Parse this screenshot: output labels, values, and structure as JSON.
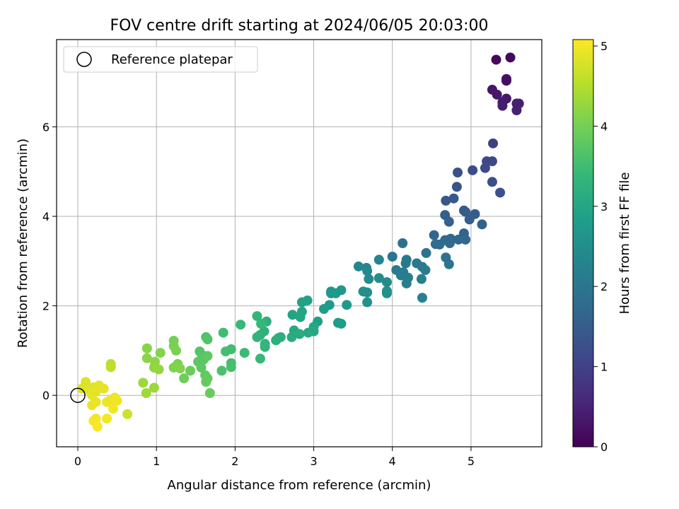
{
  "chart_data": {
    "type": "scatter",
    "title": "FOV centre drift starting at 2024/06/05 20:03:00",
    "xlabel": "Angular distance from reference (arcmin)",
    "ylabel": "Rotation from reference (arcmin)",
    "xlim": [
      -0.27,
      5.9
    ],
    "ylim": [
      -1.15,
      7.95
    ],
    "x_ticks": [
      0,
      1,
      2,
      3,
      4,
      5
    ],
    "y_ticks": [
      0,
      2,
      4,
      6
    ],
    "grid": true,
    "legend": {
      "position": "upper-left",
      "entries": [
        "Reference platepar"
      ]
    },
    "reference_point": {
      "x": 0,
      "y": 0,
      "marker": "hollow-circle"
    },
    "colorbar": {
      "label": "Hours from first FF file",
      "colormap": "viridis",
      "range": [
        0,
        5.08
      ],
      "ticks": [
        0,
        1,
        2,
        3,
        4,
        5
      ]
    },
    "colormap_stops": [
      "#440154",
      "#482878",
      "#3e4989",
      "#31688e",
      "#26828e",
      "#1f9e89",
      "#35b779",
      "#6ece58",
      "#b5de2b",
      "#fde725"
    ],
    "points": [
      {
        "x": 5.32,
        "y": 7.5,
        "c": 0.1
      },
      {
        "x": 5.5,
        "y": 7.55,
        "c": 0.12
      },
      {
        "x": 5.45,
        "y": 7.07,
        "c": 0.2
      },
      {
        "x": 5.45,
        "y": 7.03,
        "c": 0.22
      },
      {
        "x": 5.27,
        "y": 6.83,
        "c": 0.3
      },
      {
        "x": 5.33,
        "y": 6.72,
        "c": 0.32
      },
      {
        "x": 5.45,
        "y": 6.63,
        "c": 0.35
      },
      {
        "x": 5.4,
        "y": 6.55,
        "c": 0.38
      },
      {
        "x": 5.4,
        "y": 6.47,
        "c": 0.4
      },
      {
        "x": 5.58,
        "y": 6.52,
        "c": 0.42
      },
      {
        "x": 5.61,
        "y": 6.52,
        "c": 0.44
      },
      {
        "x": 5.58,
        "y": 6.37,
        "c": 0.46
      },
      {
        "x": 5.28,
        "y": 5.63,
        "c": 1.0
      },
      {
        "x": 5.2,
        "y": 5.23,
        "c": 1.1
      },
      {
        "x": 5.27,
        "y": 5.23,
        "c": 1.12
      },
      {
        "x": 5.18,
        "y": 5.08,
        "c": 1.15
      },
      {
        "x": 5.02,
        "y": 5.03,
        "c": 1.2
      },
      {
        "x": 4.83,
        "y": 4.98,
        "c": 1.25
      },
      {
        "x": 5.27,
        "y": 4.77,
        "c": 1.22
      },
      {
        "x": 5.37,
        "y": 4.53,
        "c": 1.3
      },
      {
        "x": 4.82,
        "y": 4.66,
        "c": 1.35
      },
      {
        "x": 4.68,
        "y": 4.35,
        "c": 1.4
      },
      {
        "x": 4.78,
        "y": 4.4,
        "c": 1.42
      },
      {
        "x": 4.91,
        "y": 4.13,
        "c": 1.45
      },
      {
        "x": 4.93,
        "y": 4.1,
        "c": 1.48
      },
      {
        "x": 5.05,
        "y": 4.05,
        "c": 1.5
      },
      {
        "x": 4.98,
        "y": 3.93,
        "c": 1.52
      },
      {
        "x": 4.67,
        "y": 4.03,
        "c": 1.55
      },
      {
        "x": 4.72,
        "y": 3.88,
        "c": 1.58
      },
      {
        "x": 5.14,
        "y": 3.82,
        "c": 1.55
      },
      {
        "x": 4.91,
        "y": 3.62,
        "c": 1.6
      },
      {
        "x": 4.53,
        "y": 3.58,
        "c": 1.65
      },
      {
        "x": 4.74,
        "y": 3.5,
        "c": 1.68
      },
      {
        "x": 4.84,
        "y": 3.48,
        "c": 1.7
      },
      {
        "x": 4.93,
        "y": 3.48,
        "c": 1.7
      },
      {
        "x": 4.67,
        "y": 3.47,
        "c": 1.72
      },
      {
        "x": 4.73,
        "y": 3.4,
        "c": 1.75
      },
      {
        "x": 4.55,
        "y": 3.38,
        "c": 1.78
      },
      {
        "x": 4.6,
        "y": 3.37,
        "c": 1.8
      },
      {
        "x": 4.13,
        "y": 3.4,
        "c": 1.85
      },
      {
        "x": 4.43,
        "y": 3.18,
        "c": 1.9
      },
      {
        "x": 4.68,
        "y": 3.08,
        "c": 1.92
      },
      {
        "x": 4.72,
        "y": 2.93,
        "c": 1.95
      },
      {
        "x": 4.0,
        "y": 3.1,
        "c": 2.0
      },
      {
        "x": 4.18,
        "y": 3.03,
        "c": 2.02
      },
      {
        "x": 4.17,
        "y": 2.95,
        "c": 2.05
      },
      {
        "x": 4.31,
        "y": 2.95,
        "c": 2.05
      },
      {
        "x": 4.38,
        "y": 2.87,
        "c": 2.08
      },
      {
        "x": 4.05,
        "y": 2.8,
        "c": 2.1
      },
      {
        "x": 4.14,
        "y": 2.75,
        "c": 2.12
      },
      {
        "x": 4.42,
        "y": 2.8,
        "c": 2.12
      },
      {
        "x": 4.11,
        "y": 2.68,
        "c": 2.15
      },
      {
        "x": 4.2,
        "y": 2.63,
        "c": 2.15
      },
      {
        "x": 4.37,
        "y": 2.6,
        "c": 2.18
      },
      {
        "x": 4.18,
        "y": 2.5,
        "c": 2.2
      },
      {
        "x": 4.38,
        "y": 2.18,
        "c": 2.22
      },
      {
        "x": 3.83,
        "y": 3.03,
        "c": 2.3
      },
      {
        "x": 3.57,
        "y": 2.88,
        "c": 2.35
      },
      {
        "x": 3.67,
        "y": 2.85,
        "c": 2.38
      },
      {
        "x": 3.68,
        "y": 2.78,
        "c": 2.4
      },
      {
        "x": 3.7,
        "y": 2.6,
        "c": 2.42
      },
      {
        "x": 3.83,
        "y": 2.62,
        "c": 2.45
      },
      {
        "x": 3.93,
        "y": 2.53,
        "c": 2.48
      },
      {
        "x": 3.63,
        "y": 2.32,
        "c": 2.5
      },
      {
        "x": 3.68,
        "y": 2.3,
        "c": 2.5
      },
      {
        "x": 3.93,
        "y": 2.33,
        "c": 2.52
      },
      {
        "x": 3.93,
        "y": 2.28,
        "c": 2.55
      },
      {
        "x": 3.68,
        "y": 2.08,
        "c": 2.58
      },
      {
        "x": 3.22,
        "y": 2.32,
        "c": 2.65
      },
      {
        "x": 3.22,
        "y": 2.28,
        "c": 2.68
      },
      {
        "x": 3.28,
        "y": 2.28,
        "c": 2.7
      },
      {
        "x": 3.35,
        "y": 2.35,
        "c": 2.7
      },
      {
        "x": 3.42,
        "y": 2.02,
        "c": 2.72
      },
      {
        "x": 3.2,
        "y": 2.02,
        "c": 2.75
      },
      {
        "x": 3.13,
        "y": 1.93,
        "c": 2.78
      },
      {
        "x": 3.31,
        "y": 1.62,
        "c": 2.8
      },
      {
        "x": 3.35,
        "y": 1.6,
        "c": 2.82
      },
      {
        "x": 3.05,
        "y": 1.65,
        "c": 2.85
      },
      {
        "x": 2.85,
        "y": 2.08,
        "c": 2.9
      },
      {
        "x": 2.92,
        "y": 2.12,
        "c": 2.92
      },
      {
        "x": 2.73,
        "y": 1.8,
        "c": 2.95
      },
      {
        "x": 2.85,
        "y": 1.87,
        "c": 2.95
      },
      {
        "x": 2.83,
        "y": 1.75,
        "c": 2.98
      },
      {
        "x": 3.0,
        "y": 1.53,
        "c": 3.0
      },
      {
        "x": 3.0,
        "y": 1.43,
        "c": 3.02
      },
      {
        "x": 2.93,
        "y": 1.4,
        "c": 3.05
      },
      {
        "x": 2.75,
        "y": 1.45,
        "c": 3.08
      },
      {
        "x": 2.82,
        "y": 1.37,
        "c": 3.1
      },
      {
        "x": 2.72,
        "y": 1.3,
        "c": 3.12
      },
      {
        "x": 2.55,
        "y": 1.28,
        "c": 3.15
      },
      {
        "x": 2.58,
        "y": 1.3,
        "c": 3.18
      },
      {
        "x": 2.52,
        "y": 1.23,
        "c": 3.2
      },
      {
        "x": 2.4,
        "y": 1.65,
        "c": 3.22
      },
      {
        "x": 2.37,
        "y": 1.43,
        "c": 3.25
      },
      {
        "x": 2.32,
        "y": 1.35,
        "c": 3.28
      },
      {
        "x": 2.28,
        "y": 1.3,
        "c": 3.3
      },
      {
        "x": 2.38,
        "y": 1.15,
        "c": 3.32
      },
      {
        "x": 2.38,
        "y": 1.08,
        "c": 3.35
      },
      {
        "x": 2.28,
        "y": 1.77,
        "c": 3.35
      },
      {
        "x": 2.33,
        "y": 1.6,
        "c": 3.38
      },
      {
        "x": 2.07,
        "y": 1.58,
        "c": 3.4
      },
      {
        "x": 2.32,
        "y": 0.82,
        "c": 3.42
      },
      {
        "x": 2.12,
        "y": 0.95,
        "c": 3.45
      },
      {
        "x": 1.85,
        "y": 1.4,
        "c": 3.5
      },
      {
        "x": 1.95,
        "y": 1.03,
        "c": 3.52
      },
      {
        "x": 1.88,
        "y": 0.98,
        "c": 3.55
      },
      {
        "x": 1.95,
        "y": 0.72,
        "c": 3.55
      },
      {
        "x": 1.95,
        "y": 0.63,
        "c": 3.58
      },
      {
        "x": 1.83,
        "y": 0.55,
        "c": 3.6
      },
      {
        "x": 1.63,
        "y": 1.3,
        "c": 3.65
      },
      {
        "x": 1.65,
        "y": 1.25,
        "c": 3.68
      },
      {
        "x": 1.55,
        "y": 0.98,
        "c": 3.7
      },
      {
        "x": 1.58,
        "y": 0.9,
        "c": 3.72
      },
      {
        "x": 1.6,
        "y": 0.8,
        "c": 3.75
      },
      {
        "x": 1.53,
        "y": 0.75,
        "c": 3.75
      },
      {
        "x": 1.57,
        "y": 0.62,
        "c": 3.78
      },
      {
        "x": 1.65,
        "y": 0.88,
        "c": 3.8
      },
      {
        "x": 1.62,
        "y": 0.45,
        "c": 3.82
      },
      {
        "x": 1.65,
        "y": 0.38,
        "c": 3.85
      },
      {
        "x": 1.63,
        "y": 0.3,
        "c": 3.85
      },
      {
        "x": 1.68,
        "y": 0.05,
        "c": 3.88
      },
      {
        "x": 1.43,
        "y": 0.55,
        "c": 3.9
      },
      {
        "x": 1.35,
        "y": 0.38,
        "c": 3.95
      },
      {
        "x": 1.22,
        "y": 1.22,
        "c": 4.0
      },
      {
        "x": 1.22,
        "y": 1.1,
        "c": 4.02
      },
      {
        "x": 1.25,
        "y": 1.0,
        "c": 4.05
      },
      {
        "x": 1.27,
        "y": 0.7,
        "c": 4.05
      },
      {
        "x": 1.22,
        "y": 0.62,
        "c": 4.08
      },
      {
        "x": 1.3,
        "y": 0.6,
        "c": 4.1
      },
      {
        "x": 1.05,
        "y": 0.95,
        "c": 4.12
      },
      {
        "x": 0.88,
        "y": 1.05,
        "c": 4.15
      },
      {
        "x": 0.88,
        "y": 0.83,
        "c": 4.18
      },
      {
        "x": 0.98,
        "y": 0.75,
        "c": 4.2
      },
      {
        "x": 0.97,
        "y": 0.62,
        "c": 4.22
      },
      {
        "x": 1.03,
        "y": 0.58,
        "c": 4.25
      },
      {
        "x": 0.83,
        "y": 0.28,
        "c": 4.3
      },
      {
        "x": 0.97,
        "y": 0.17,
        "c": 4.32
      },
      {
        "x": 0.87,
        "y": 0.05,
        "c": 4.35
      },
      {
        "x": 0.42,
        "y": 0.7,
        "c": 4.55
      },
      {
        "x": 0.42,
        "y": 0.63,
        "c": 4.58
      },
      {
        "x": 0.63,
        "y": -0.42,
        "c": 4.7
      },
      {
        "x": 0.1,
        "y": 0.3,
        "c": 4.8
      },
      {
        "x": 0.05,
        "y": 0.15,
        "c": 4.82
      },
      {
        "x": 0.15,
        "y": 0.1,
        "c": 4.85
      },
      {
        "x": 0.2,
        "y": 0.18,
        "c": 4.85
      },
      {
        "x": 0.23,
        "y": 0.08,
        "c": 4.88
      },
      {
        "x": 0.27,
        "y": 0.22,
        "c": 4.88
      },
      {
        "x": 0.33,
        "y": 0.15,
        "c": 4.9
      },
      {
        "x": 0.18,
        "y": 0.0,
        "c": 4.9
      },
      {
        "x": 0.23,
        "y": -0.15,
        "c": 4.92
      },
      {
        "x": 0.18,
        "y": -0.22,
        "c": 4.92
      },
      {
        "x": 0.37,
        "y": -0.15,
        "c": 4.95
      },
      {
        "x": 0.42,
        "y": -0.1,
        "c": 4.95
      },
      {
        "x": 0.47,
        "y": -0.05,
        "c": 4.97
      },
      {
        "x": 0.5,
        "y": -0.12,
        "c": 4.98
      },
      {
        "x": 0.45,
        "y": -0.3,
        "c": 5.0
      },
      {
        "x": 0.37,
        "y": -0.52,
        "c": 5.0
      },
      {
        "x": 0.2,
        "y": -0.57,
        "c": 5.02
      },
      {
        "x": 0.23,
        "y": -0.52,
        "c": 5.02
      },
      {
        "x": 0.25,
        "y": -0.7,
        "c": 5.05
      }
    ]
  }
}
